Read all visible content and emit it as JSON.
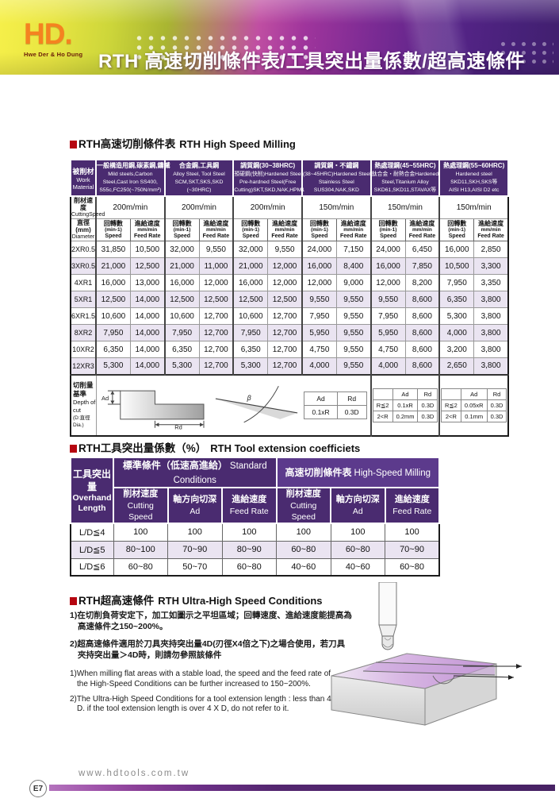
{
  "header": {
    "brand": "HD.",
    "brand_sub": "Hwe Der & Ho Dung",
    "title": "RTH 高速切削條件表/工具突出量係數/超高速條件"
  },
  "colors": {
    "header_purple": "#4A2B70",
    "header_purple_light": "#5C3A8C",
    "row_alt": "#EAE4F1",
    "brand_orange": "#F58220",
    "bullet_red": "#B50610",
    "footer_bar_purple": "#53266F",
    "illustration_surface_purple": "#C79AD8"
  },
  "table1": {
    "title_zh": "RTH高速切削條件表",
    "title_en": "RTH High Speed Milling",
    "work_material": {
      "zh": "被削材",
      "en1": "Work",
      "en2": "Material"
    },
    "cutting_speed": {
      "zh": "削材速度",
      "en": "CuttingSpeed"
    },
    "diameter": {
      "zh": "直徑 (mm)",
      "en": "Diameter"
    },
    "speed_col": {
      "zh": "回轉數",
      "unit": "(min-1)",
      "en": "Speed"
    },
    "feed_col": {
      "zh": "進給速度",
      "unit": "mm/min",
      "en": "Feed Rate"
    },
    "materials": [
      {
        "lines": [
          "一般構造用鋼,碳素鋼,鑄鐵",
          "Mild steels,Carbon",
          "Steel,Cast Iron SS400,",
          "S55c,FC250(~750N/mm²)"
        ],
        "speed": "200m/min"
      },
      {
        "lines": [
          "合金鋼,工具鋼",
          "Alloy Steel, Tool Steel",
          "SCM,SKT,SKS,SKD",
          "(~30HRC)"
        ],
        "speed": "200m/min"
      },
      {
        "lines": [
          "調質鋼(30~38HRC)",
          "預硬鋼(快削)Hardened Steel",
          "Pre-hardned Steel(Free",
          "Cutting)SKT,SKD,NAK,HPM1"
        ],
        "speed": "200m/min"
      },
      {
        "lines": [
          "調質鋼・不鏽鋼",
          "(38~45HRC)Hardened Steel",
          "Stainless Steel",
          "SUS304,NAK,SKD"
        ],
        "speed": "150m/min"
      },
      {
        "lines": [
          "熱處理鋼(45~55HRC)",
          "鈦合金・耐熱合金Hardened",
          "Steel,Titanium Alloy",
          "SKD61,SKD11,STAVAX等"
        ],
        "speed": "150m/min"
      },
      {
        "lines": [
          "熱處理鋼(55~60HRC)",
          "Hardened steel",
          "SKD11,SKH,SKS等",
          "AISI H13,AISI D2 etc"
        ],
        "speed": "150m/min"
      }
    ],
    "rows": [
      {
        "label": "2XR0.5",
        "values": [
          "31,850",
          "10,500",
          "32,000",
          "9,550",
          "32,000",
          "9,550",
          "24,000",
          "7,150",
          "24,000",
          "6,450",
          "16,000",
          "2,850"
        ]
      },
      {
        "label": "3XR0.5",
        "values": [
          "21,000",
          "12,500",
          "21,000",
          "11,000",
          "21,000",
          "12,000",
          "16,000",
          "8,400",
          "16,000",
          "7,850",
          "10,500",
          "3,300"
        ]
      },
      {
        "label": "4XR1",
        "values": [
          "16,000",
          "13,000",
          "16,000",
          "12,000",
          "16,000",
          "12,000",
          "12,000",
          "9,000",
          "12,000",
          "8,200",
          "7,950",
          "3,350"
        ]
      },
      {
        "label": "5XR1",
        "values": [
          "12,500",
          "14,000",
          "12,500",
          "12,500",
          "12,500",
          "12,500",
          "9,550",
          "9,550",
          "9,550",
          "8,600",
          "6,350",
          "3,800"
        ]
      },
      {
        "label": "6XR1.5",
        "values": [
          "10,600",
          "14,000",
          "10,600",
          "12,700",
          "10,600",
          "12,700",
          "7,950",
          "9,550",
          "7,950",
          "8,600",
          "5,300",
          "3,800"
        ]
      },
      {
        "label": "8XR2",
        "values": [
          "7,950",
          "14,000",
          "7,950",
          "12,700",
          "7,950",
          "12,700",
          "5,950",
          "9,550",
          "5,950",
          "8,600",
          "4,000",
          "3,800"
        ]
      },
      {
        "label": "10XR2",
        "values": [
          "6,350",
          "14,000",
          "6,350",
          "12,700",
          "6,350",
          "12,700",
          "4,750",
          "9,550",
          "4,750",
          "8,600",
          "3,200",
          "3,800"
        ]
      },
      {
        "label": "12XR3",
        "values": [
          "5,300",
          "14,000",
          "5,300",
          "12,700",
          "5,300",
          "12,700",
          "4,000",
          "9,550",
          "4,000",
          "8,600",
          "2,650",
          "3,800"
        ]
      }
    ],
    "depth": {
      "label": {
        "zh": "切削量基準",
        "en": "Depth of cut",
        "note": "(D:直徑 Dia.)"
      },
      "ad_label": "Ad",
      "rd_label": "Rd",
      "beta_label": "β",
      "t1": {
        "h0": "Ad",
        "h1": "Rd",
        "r0": "0.1xR",
        "r1": "0.3D"
      },
      "t2": {
        "h1": "Ad",
        "h2": "Rd",
        "r1a": "R≦2",
        "r1b": "0.1xR",
        "r1c": "0.3D",
        "r2a": "2<R",
        "r2b": "0.2mm",
        "r2c": "0.3D"
      },
      "t3": {
        "h1": "Ad",
        "h2": "Rd",
        "r1a": "R≦2",
        "r1b": "0.05xR",
        "r1c": "0.3D",
        "r2a": "2<R",
        "r2b": "0.1mm",
        "r2c": "0.3D"
      }
    }
  },
  "table2": {
    "title_zh": "RTH工具突出量係數（%）",
    "title_en": "RTH Tool extension coefficiets",
    "col0": {
      "zh": "工具突出量",
      "en1": "Overhand",
      "en2": "Length"
    },
    "group1_zh": "標準條件（低速高進給）",
    "group1_en": "Standard Conditions",
    "group2_zh": "高速切削條件表",
    "group2_en": "High-Speed Milling",
    "subcols": [
      {
        "zh": "削材速度",
        "en": "Cutting Speed"
      },
      {
        "zh": "軸方向切深",
        "en": "Ad"
      },
      {
        "zh": "進給速度",
        "en": "Feed Rate"
      },
      {
        "zh": "削材速度",
        "en": "Cutting Speed"
      },
      {
        "zh": "軸方向切深",
        "en": "Ad"
      },
      {
        "zh": "進給速度",
        "en": "Feed Rate"
      }
    ],
    "rows": [
      {
        "label": "L/D≦4",
        "values": [
          "100",
          "100",
          "100",
          "100",
          "100",
          "100"
        ]
      },
      {
        "label": "L/D≦5",
        "values": [
          "80~100",
          "70~90",
          "80~90",
          "60~80",
          "60~80",
          "70~90"
        ]
      },
      {
        "label": "L/D≦6",
        "values": [
          "60~80",
          "50~70",
          "60~80",
          "40~60",
          "40~60",
          "60~80"
        ]
      }
    ]
  },
  "section3": {
    "title_zh": "RTH超高速條件",
    "title_en": "RTH Ultra-High Speed Conditions",
    "zh_items": [
      "1)在切削負荷安定下，加工如圖示之平坦區域；回轉速度、進給速度能提高為高速條件之150~200%。",
      "2)超高速條件適用於刀具夾持突出量4D(刃徑X4倍之下)之場合使用，若刀具夾持突出量＞4D時，則請勿參照該條件"
    ],
    "en_items": [
      "1)When milling flat areas with a stable load, the speed and the feed rate of the High-Speed Conditions can be further increased to 150~200%.",
      "2)The Ultra-High Speed Conditions for a tool extension length : less than 4 X D. if the tool extension length is over 4 X D, do not refer to it."
    ]
  },
  "footer": {
    "page": "E7",
    "url": "www.hdtools.com.tw"
  }
}
